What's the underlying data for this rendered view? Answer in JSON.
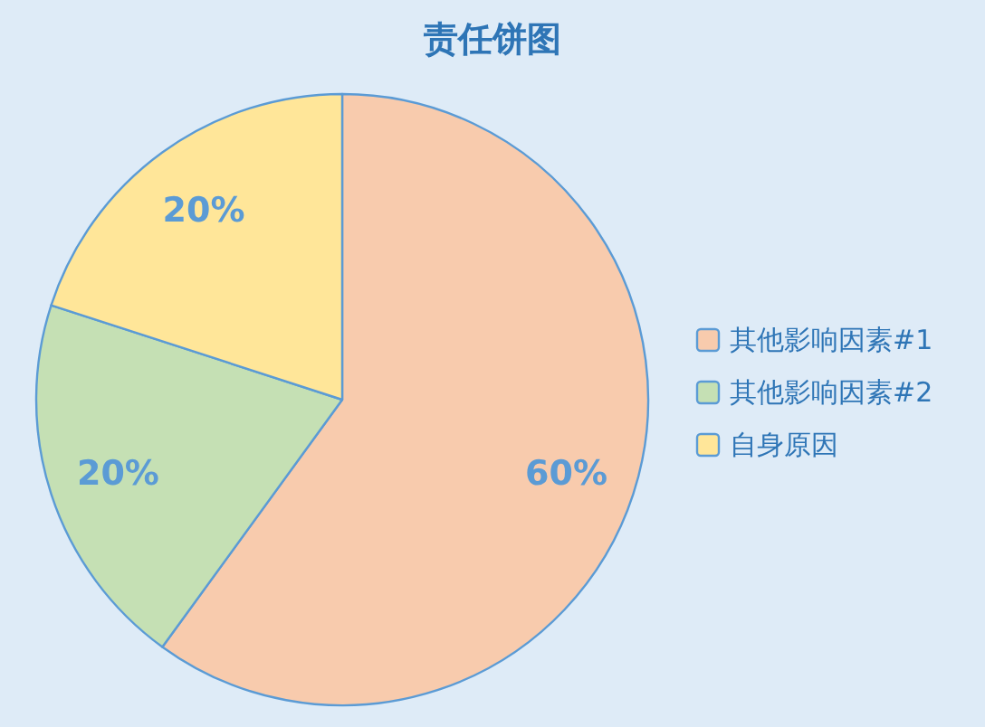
{
  "chart_data": {
    "type": "pie",
    "title": "责任饼图",
    "categories": [
      "其他影响因素#1",
      "其他影响因素#2",
      "自身原因"
    ],
    "values": [
      60,
      20,
      20
    ],
    "colors": [
      "#f8cbad",
      "#c5e0b4",
      "#ffe699"
    ],
    "value_labels": [
      "60%",
      "20%",
      "20%"
    ],
    "legend": "right"
  }
}
